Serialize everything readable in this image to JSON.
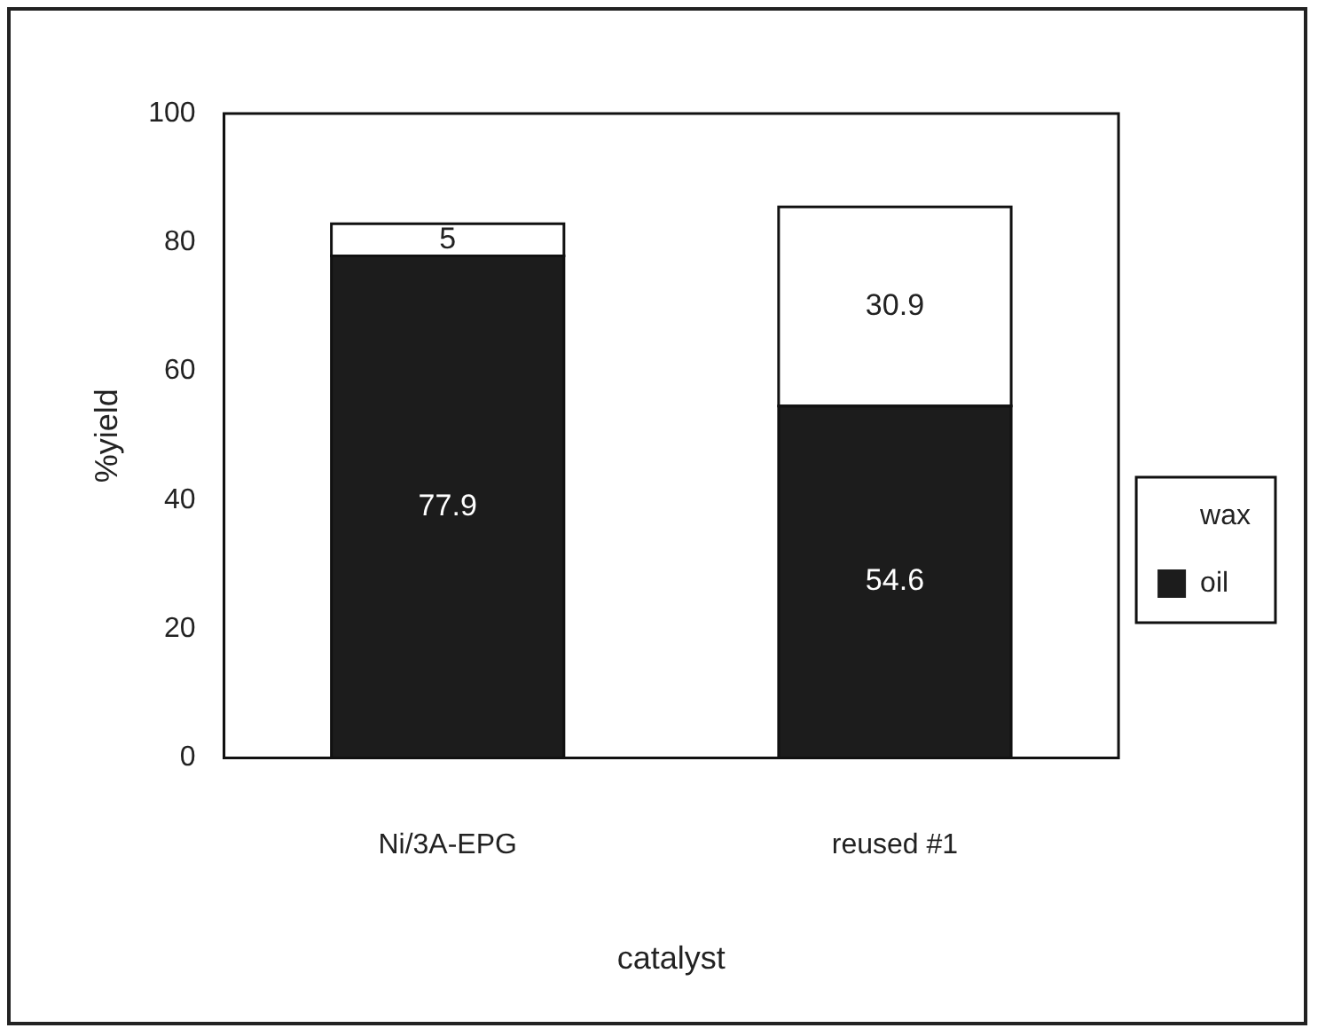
{
  "chart_data": {
    "type": "bar",
    "stacked": true,
    "xlabel": "catalyst",
    "ylabel": "%yield",
    "categories": [
      "Ni/3A-EPG",
      "reused #1"
    ],
    "series": [
      {
        "name": "oil",
        "color": "#1c1c1c",
        "values": [
          77.9,
          54.6
        ]
      },
      {
        "name": "wax",
        "color": "#ffffff",
        "values": [
          5,
          30.9
        ]
      }
    ],
    "ylim": [
      0,
      100
    ],
    "yticks": [
      0,
      20,
      40,
      60,
      80,
      100
    ],
    "grid": false,
    "legend": "right",
    "data_labels": true
  }
}
